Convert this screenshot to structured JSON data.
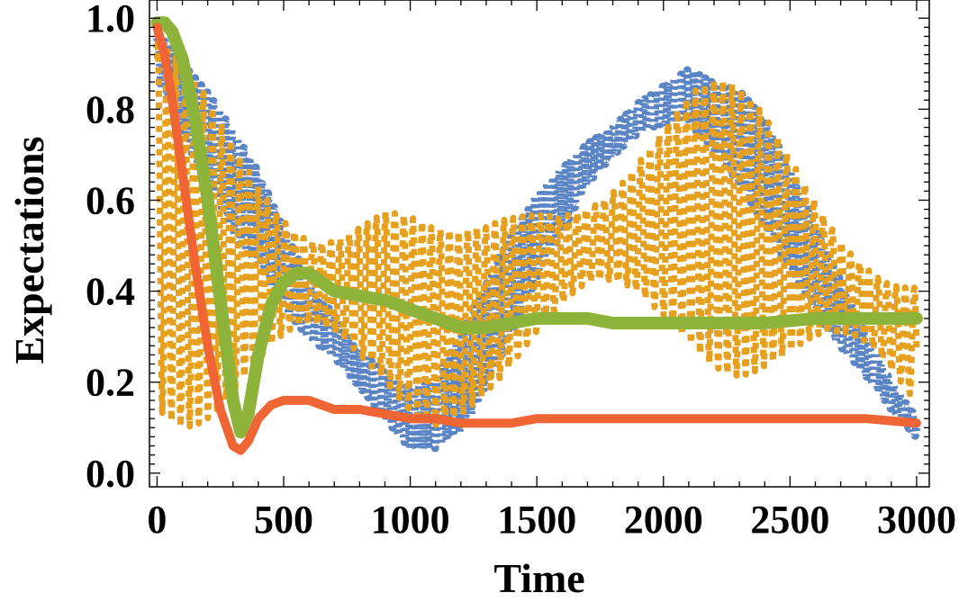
{
  "chart_data": {
    "type": "line",
    "title": "",
    "xlabel": "Time",
    "ylabel": "Expectations",
    "xlim": [
      -30,
      3050
    ],
    "ylim": [
      -0.03,
      1.04
    ],
    "x_ticks": [
      0,
      500,
      1000,
      1500,
      2000,
      2500,
      3000
    ],
    "x_tick_labels": [
      "0",
      "500",
      "1000",
      "1500",
      "2000",
      "2500",
      "3000"
    ],
    "y_ticks": [
      0.0,
      0.2,
      0.4,
      0.6,
      0.8,
      1.0
    ],
    "y_tick_labels": [
      "0.0",
      "0.2",
      "0.4",
      "0.6",
      "0.8",
      "1.0"
    ],
    "grid": false,
    "legend": "none",
    "series": [
      {
        "color": "#5b84c4",
        "style": "dotted-thick",
        "x": [
          0,
          100,
          200,
          300,
          400,
          500,
          600,
          700,
          800,
          900,
          1000,
          1100,
          1200,
          1300,
          1400,
          1500,
          1600,
          1700,
          1800,
          1900,
          2000,
          2100,
          2200,
          2300,
          2400,
          2500,
          2600,
          2700,
          2800,
          2900,
          3000
        ],
        "center": [
          0.92,
          0.82,
          0.74,
          0.64,
          0.56,
          0.45,
          0.36,
          0.3,
          0.23,
          0.17,
          0.12,
          0.13,
          0.2,
          0.3,
          0.42,
          0.52,
          0.6,
          0.68,
          0.73,
          0.78,
          0.81,
          0.83,
          0.78,
          0.74,
          0.66,
          0.56,
          0.45,
          0.35,
          0.26,
          0.17,
          0.1
        ],
        "amplitude": [
          0.07,
          0.09,
          0.1,
          0.12,
          0.13,
          0.14,
          0.15,
          0.15,
          0.14,
          0.13,
          0.12,
          0.1,
          0.12,
          0.12,
          0.12,
          0.12,
          0.12,
          0.11,
          0.11,
          0.11,
          0.1,
          0.1,
          0.1,
          0.11,
          0.12,
          0.12,
          0.13,
          0.13,
          0.12,
          0.1,
          0.07
        ]
      },
      {
        "color": "#e6a020",
        "style": "dotted-thick",
        "x": [
          0,
          100,
          200,
          300,
          400,
          500,
          600,
          700,
          800,
          900,
          1000,
          1100,
          1200,
          1300,
          1400,
          1500,
          1600,
          1700,
          1800,
          1900,
          2000,
          2100,
          2200,
          2300,
          2400,
          2500,
          2600,
          2700,
          2800,
          2900,
          3000
        ],
        "center": [
          0.55,
          0.5,
          0.47,
          0.45,
          0.44,
          0.43,
          0.42,
          0.41,
          0.4,
          0.39,
          0.35,
          0.32,
          0.33,
          0.36,
          0.4,
          0.44,
          0.47,
          0.5,
          0.52,
          0.54,
          0.55,
          0.56,
          0.55,
          0.53,
          0.51,
          0.48,
          0.45,
          0.41,
          0.37,
          0.32,
          0.28
        ],
        "amplitude": [
          0.42,
          0.4,
          0.38,
          0.36,
          0.34,
          0.32,
          0.3,
          0.3,
          0.3,
          0.28,
          0.25,
          0.22,
          0.2,
          0.2,
          0.22,
          0.24,
          0.26,
          0.27,
          0.28,
          0.29,
          0.3,
          0.31,
          0.32,
          0.32,
          0.31,
          0.3,
          0.29,
          0.28,
          0.27,
          0.26,
          0.25
        ]
      },
      {
        "color": "#8db33b",
        "style": "solid-thick",
        "x": [
          0,
          30,
          60,
          100,
          150,
          200,
          250,
          300,
          330,
          360,
          400,
          450,
          500,
          550,
          600,
          650,
          700,
          800,
          900,
          1000,
          1100,
          1200,
          1300,
          1400,
          1500,
          1600,
          1700,
          1800,
          2000,
          2200,
          2400,
          2600,
          2800,
          3000
        ],
        "y": [
          0.99,
          0.99,
          0.97,
          0.91,
          0.78,
          0.6,
          0.38,
          0.16,
          0.09,
          0.13,
          0.26,
          0.37,
          0.42,
          0.44,
          0.44,
          0.42,
          0.4,
          0.39,
          0.38,
          0.36,
          0.34,
          0.32,
          0.32,
          0.33,
          0.34,
          0.34,
          0.34,
          0.33,
          0.33,
          0.33,
          0.33,
          0.34,
          0.34,
          0.34
        ]
      },
      {
        "color": "#ef6533",
        "style": "solid-thick",
        "x": [
          0,
          30,
          60,
          100,
          150,
          200,
          250,
          300,
          330,
          360,
          400,
          450,
          500,
          550,
          600,
          650,
          700,
          800,
          900,
          1000,
          1100,
          1200,
          1300,
          1400,
          1500,
          1600,
          1700,
          1800,
          2000,
          2200,
          2400,
          2600,
          2800,
          3000
        ],
        "y": [
          0.98,
          0.92,
          0.82,
          0.66,
          0.46,
          0.28,
          0.14,
          0.06,
          0.05,
          0.07,
          0.12,
          0.15,
          0.16,
          0.16,
          0.16,
          0.15,
          0.14,
          0.14,
          0.13,
          0.12,
          0.12,
          0.11,
          0.11,
          0.11,
          0.12,
          0.12,
          0.12,
          0.12,
          0.12,
          0.12,
          0.12,
          0.12,
          0.12,
          0.11
        ]
      }
    ]
  }
}
